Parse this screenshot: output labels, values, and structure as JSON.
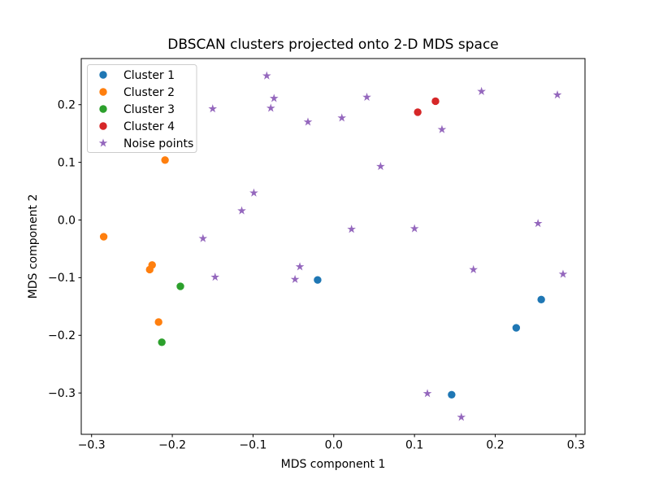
{
  "chart_data": {
    "type": "scatter",
    "title": "DBSCAN clusters projected onto 2-D MDS space",
    "xlabel": "MDS component 1",
    "ylabel": "MDS component 2",
    "xlim": [
      -0.3128,
      0.3112
    ],
    "ylim": [
      -0.3717,
      0.28
    ],
    "xticks": [
      -0.3,
      -0.2,
      -0.1,
      0.0,
      0.1,
      0.2,
      0.3
    ],
    "yticks": [
      -0.3,
      -0.2,
      -0.1,
      0.0,
      0.1,
      0.2
    ],
    "grid": false,
    "legend_position": "upper left",
    "background_color": "#ffffff",
    "spine_color": "#000000",
    "text_color": "#000000",
    "legend_border_color": "#cccccc",
    "series": [
      {
        "name": "Cluster 1",
        "marker": "circle",
        "color": "#1f77b4",
        "points": [
          [
            -0.02,
            -0.104
          ],
          [
            0.146,
            -0.303
          ],
          [
            0.226,
            -0.187
          ],
          [
            0.257,
            -0.138
          ]
        ]
      },
      {
        "name": "Cluster 2",
        "marker": "circle",
        "color": "#ff7f0e",
        "points": [
          [
            -0.285,
            -0.029
          ],
          [
            -0.209,
            0.104
          ],
          [
            -0.228,
            -0.086
          ],
          [
            -0.225,
            -0.078
          ],
          [
            -0.217,
            -0.177
          ]
        ]
      },
      {
        "name": "Cluster 3",
        "marker": "circle",
        "color": "#2ca02c",
        "points": [
          [
            -0.19,
            -0.115
          ],
          [
            -0.213,
            -0.212
          ]
        ]
      },
      {
        "name": "Cluster 4",
        "marker": "circle",
        "color": "#d62728",
        "points": [
          [
            0.104,
            0.187
          ],
          [
            0.126,
            0.206
          ]
        ]
      },
      {
        "name": "Noise points",
        "marker": "star",
        "color": "#9467bd",
        "points": [
          [
            -0.15,
            0.193
          ],
          [
            -0.083,
            0.25
          ],
          [
            -0.074,
            0.211
          ],
          [
            -0.078,
            0.194
          ],
          [
            -0.032,
            0.17
          ],
          [
            0.01,
            0.177
          ],
          [
            0.041,
            0.213
          ],
          [
            0.134,
            0.157
          ],
          [
            0.183,
            0.223
          ],
          [
            0.277,
            0.217
          ],
          [
            0.058,
            0.093
          ],
          [
            -0.099,
            0.047
          ],
          [
            -0.114,
            0.016
          ],
          [
            -0.162,
            -0.032
          ],
          [
            0.022,
            -0.016
          ],
          [
            0.1,
            -0.015
          ],
          [
            0.253,
            -0.006
          ],
          [
            -0.042,
            -0.081
          ],
          [
            -0.048,
            -0.103
          ],
          [
            -0.147,
            -0.099
          ],
          [
            0.173,
            -0.086
          ],
          [
            0.284,
            -0.094
          ],
          [
            0.116,
            -0.301
          ],
          [
            0.158,
            -0.342
          ]
        ]
      }
    ]
  }
}
